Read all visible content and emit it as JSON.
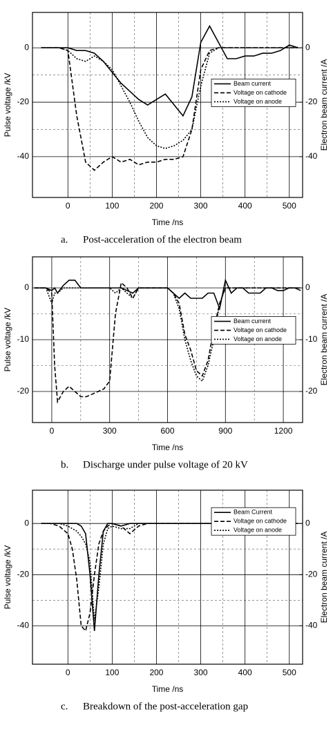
{
  "chart_data": [
    {
      "type": "line",
      "caption_label": "a.",
      "caption": "Post-acceleration of the electron beam",
      "xlabel": "Time /ns",
      "ylabel": "Pulse voltage /kV",
      "y2label": "Electron beam current /A",
      "xlim": [
        -80,
        530
      ],
      "xticks": [
        0,
        100,
        200,
        300,
        400,
        500
      ],
      "ylim": [
        -55,
        13
      ],
      "yticks": [
        -40,
        -20,
        0
      ],
      "y2lim": [
        -55,
        13
      ],
      "y2ticks": [
        -40,
        -20,
        0
      ],
      "grid": true,
      "minor_grid": true,
      "legend": "center right",
      "x": [
        -60,
        -40,
        -20,
        0,
        20,
        40,
        60,
        80,
        100,
        120,
        140,
        160,
        180,
        200,
        220,
        240,
        260,
        280,
        300,
        320,
        340,
        360,
        380,
        400,
        420,
        440,
        460,
        480,
        500,
        520
      ],
      "series": [
        {
          "name": "Beam current",
          "color": "#000000",
          "style": "solid",
          "axis": "y2",
          "values": [
            0,
            0,
            0,
            0,
            -1,
            -1,
            -2,
            -5,
            -9,
            -13,
            -16,
            -19,
            -21,
            -19,
            -17,
            -21,
            -25,
            -18,
            2,
            8,
            2,
            -4,
            -4,
            -3,
            -3,
            -2,
            -2,
            -1,
            1,
            0
          ]
        },
        {
          "name": "Voltage on cathode",
          "color": "#000000",
          "style": "dashed",
          "values": [
            0,
            0,
            0,
            -1,
            -25,
            -42,
            -45,
            -42,
            -40,
            -42,
            -41,
            -43,
            -42,
            -42,
            -41,
            -41,
            -40,
            -30,
            -8,
            -1,
            0,
            0,
            0,
            0,
            0,
            0,
            0,
            0,
            0,
            0
          ]
        },
        {
          "name": "Voltage on anode",
          "color": "#000000",
          "style": "dotted",
          "values": [
            0,
            0,
            0,
            -1,
            -4,
            -5,
            -3,
            -5,
            -8,
            -14,
            -20,
            -27,
            -33,
            -36,
            -37,
            -36,
            -34,
            -30,
            -14,
            -2,
            0,
            0,
            0,
            0,
            0,
            0,
            0,
            0,
            0,
            0
          ]
        }
      ]
    },
    {
      "type": "line",
      "caption_label": "b.",
      "caption": "Discharge under pulse voltage of 20 kV",
      "xlabel": "Time /ns",
      "ylabel": "Pulse voltage /kV",
      "y2label": "Electron beam current /A",
      "xlim": [
        -100,
        1300
      ],
      "xticks": [
        0,
        300,
        600,
        900,
        1200
      ],
      "ylim": [
        -26,
        6
      ],
      "yticks": [
        -20,
        -10,
        0
      ],
      "y2lim": [
        -26,
        6
      ],
      "y2ticks": [
        -20,
        -10,
        0
      ],
      "grid": true,
      "minor_grid": true,
      "legend": "center right",
      "x": [
        -90,
        -60,
        -30,
        0,
        15,
        30,
        60,
        90,
        120,
        150,
        180,
        210,
        240,
        270,
        300,
        330,
        360,
        390,
        420,
        450,
        480,
        510,
        540,
        570,
        600,
        630,
        660,
        690,
        720,
        750,
        780,
        810,
        840,
        870,
        900,
        930,
        960,
        990,
        1020,
        1050,
        1080,
        1110,
        1140,
        1170,
        1200,
        1230,
        1260,
        1290
      ],
      "series": [
        {
          "name": "Beam current",
          "color": "#000000",
          "style": "solid",
          "axis": "y2",
          "values": [
            0,
            0,
            0,
            -0.5,
            0,
            -1,
            0.5,
            1.5,
            1.5,
            0,
            0,
            0,
            0,
            0,
            0,
            0,
            0,
            -0.5,
            -1,
            0,
            0,
            0,
            0,
            0,
            0,
            -1,
            -2,
            -1,
            -2,
            -2,
            -2,
            -1,
            -1,
            -4,
            1.5,
            -1,
            0,
            0,
            -1,
            -1,
            -1,
            0,
            0,
            -0.5,
            -0.5,
            0,
            0,
            -0.5
          ]
        },
        {
          "name": "Voltage on cathode",
          "color": "#000000",
          "style": "dashed",
          "values": [
            0,
            0,
            0,
            -1,
            -15,
            -22,
            -20,
            -19,
            -20,
            -21,
            -21,
            -20.5,
            -20,
            -19.5,
            -18,
            -5,
            1,
            0,
            -2,
            0,
            0,
            0,
            0,
            0,
            0,
            -1,
            -3,
            -9,
            -12,
            -16,
            -17,
            -14,
            -8,
            -3,
            0,
            0,
            0,
            0,
            0,
            0,
            0,
            0,
            0,
            0,
            0,
            0,
            0,
            0
          ]
        },
        {
          "name": "Voltage on anode",
          "color": "#000000",
          "style": "dotted",
          "values": [
            0,
            0,
            0,
            -3,
            -1,
            -1,
            0,
            0,
            0,
            0,
            0,
            0,
            0,
            0,
            0,
            -1,
            0,
            -1,
            -2,
            0,
            0,
            0,
            0,
            0,
            0,
            -1,
            -4,
            -10,
            -14,
            -17,
            -18,
            -15,
            -10,
            -3,
            0,
            0,
            0,
            0,
            0,
            0,
            0,
            0,
            0,
            0,
            0,
            0,
            0,
            0
          ]
        }
      ]
    },
    {
      "type": "line",
      "caption_label": "c.",
      "caption": "Breakdown of the post-acceleration gap",
      "xlabel": "Time /ns",
      "ylabel": "Pulse voltage /kV",
      "y2label": "Electron beam current /A",
      "xlim": [
        -80,
        530
      ],
      "xticks": [
        0,
        100,
        200,
        300,
        400,
        500
      ],
      "ylim": [
        -55,
        13
      ],
      "yticks": [
        -40,
        -20,
        0
      ],
      "y2lim": [
        -55,
        13
      ],
      "y2ticks": [
        -40,
        -20,
        0
      ],
      "grid": true,
      "minor_grid": true,
      "legend": "upper right",
      "x": [
        -60,
        -40,
        -20,
        0,
        10,
        20,
        30,
        40,
        50,
        60,
        70,
        80,
        90,
        100,
        120,
        140,
        160,
        180,
        200,
        240,
        280,
        320,
        360,
        400,
        440,
        480,
        520
      ],
      "series": [
        {
          "name": "Beam Current",
          "color": "#000000",
          "style": "solid",
          "axis": "y2",
          "values": [
            0,
            0,
            0,
            0,
            0,
            0,
            -1,
            -4,
            -20,
            -42,
            -20,
            -3,
            0,
            0,
            -1,
            0,
            0,
            0,
            0,
            0,
            0,
            0,
            0,
            1,
            0,
            0,
            0
          ]
        },
        {
          "name": "Voltage on cathode",
          "color": "#000000",
          "style": "dashed",
          "values": [
            0,
            0,
            -1,
            -4,
            -10,
            -22,
            -40,
            -42,
            -35,
            -20,
            -8,
            -3,
            -1,
            0,
            -1,
            -4,
            -1,
            0,
            0,
            0,
            0,
            0,
            0,
            0,
            0,
            0,
            0
          ]
        },
        {
          "name": "Voltage on anode",
          "color": "#000000",
          "style": "dotted",
          "values": [
            0,
            0,
            0,
            -1,
            -2,
            -3,
            -5,
            -8,
            -15,
            -38,
            -25,
            -8,
            -2,
            -1,
            -2,
            -2,
            0,
            0,
            0,
            0,
            0,
            0,
            0,
            0,
            0,
            0,
            0
          ]
        }
      ]
    }
  ]
}
